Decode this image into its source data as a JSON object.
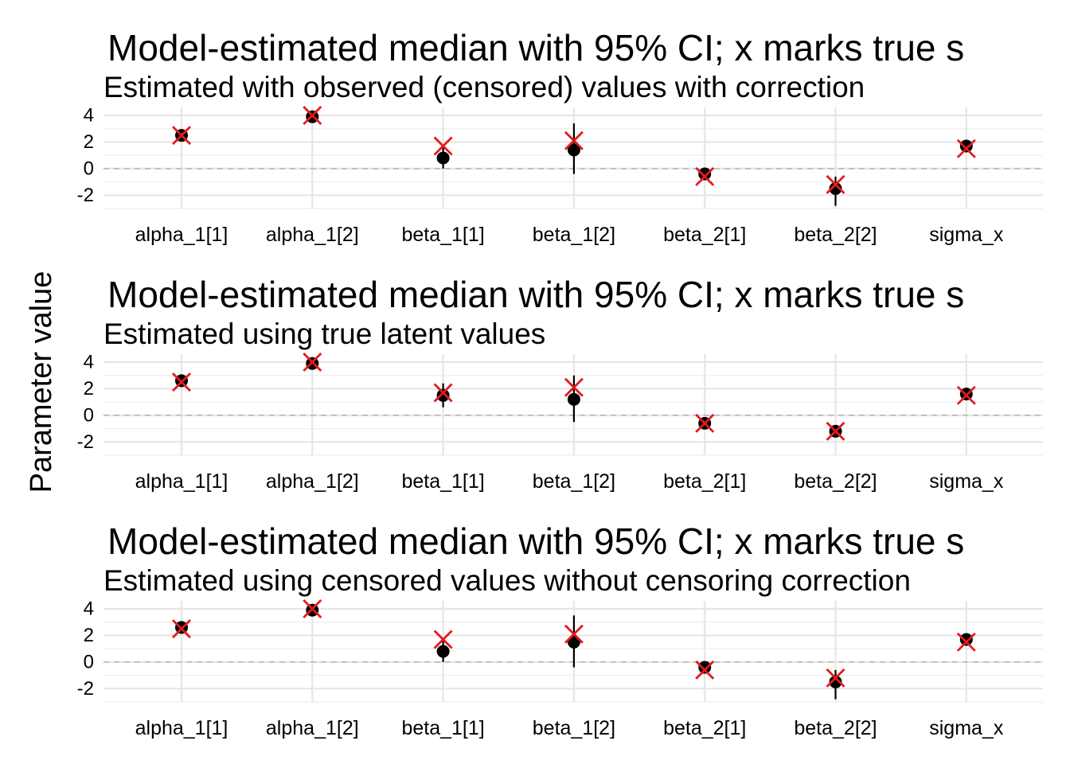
{
  "chart_data": [
    {
      "type": "scatter",
      "title": "Model-estimated median with 95% CI; x marks true s",
      "subtitle": "Estimated with observed (censored) values with correction",
      "ylabel": "Parameter value",
      "categories": [
        "alpha_1[1]",
        "alpha_1[2]",
        "beta_1[1]",
        "beta_1[2]",
        "beta_2[1]",
        "beta_2[2]",
        "sigma_x"
      ],
      "yticks": [
        4,
        2,
        0,
        -2
      ],
      "ylim": [
        -3.0,
        4.6
      ],
      "reference_line": 0,
      "grid": true,
      "series": [
        {
          "marker": "point",
          "color": "#000000",
          "median": [
            2.5,
            3.9,
            0.8,
            1.4,
            -0.4,
            -1.5,
            1.7
          ],
          "lower": [
            2.2,
            3.6,
            0.0,
            -0.4,
            -0.7,
            -2.8,
            1.5
          ],
          "upper": [
            2.8,
            4.2,
            1.7,
            3.4,
            -0.2,
            -0.6,
            1.9
          ]
        },
        {
          "marker": "x",
          "color": "#e41a1c",
          "values": [
            2.5,
            4.0,
            1.7,
            2.1,
            -0.6,
            -1.2,
            1.5
          ]
        }
      ]
    },
    {
      "type": "scatter",
      "title": "Model-estimated median with 95% CI; x marks true s",
      "subtitle": "Estimated using true latent values",
      "ylabel": "Parameter value",
      "categories": [
        "alpha_1[1]",
        "alpha_1[2]",
        "beta_1[1]",
        "beta_1[2]",
        "beta_2[1]",
        "beta_2[2]",
        "sigma_x"
      ],
      "yticks": [
        4,
        2,
        0,
        -2
      ],
      "ylim": [
        -3.0,
        4.6
      ],
      "reference_line": 0,
      "grid": true,
      "series": [
        {
          "marker": "point",
          "color": "#000000",
          "median": [
            2.6,
            3.9,
            1.5,
            1.2,
            -0.6,
            -1.2,
            1.6
          ],
          "lower": [
            2.3,
            3.6,
            0.6,
            -0.5,
            -0.9,
            -1.6,
            1.4
          ],
          "upper": [
            2.9,
            4.2,
            2.4,
            3.0,
            -0.3,
            -0.8,
            1.8
          ]
        },
        {
          "marker": "x",
          "color": "#e41a1c",
          "values": [
            2.5,
            4.0,
            1.7,
            2.1,
            -0.6,
            -1.2,
            1.5
          ]
        }
      ]
    },
    {
      "type": "scatter",
      "title": "Model-estimated median with 95% CI; x marks true s",
      "subtitle": "Estimated using censored values without censoring correction",
      "ylabel": "Parameter value",
      "categories": [
        "alpha_1[1]",
        "alpha_1[2]",
        "beta_1[1]",
        "beta_1[2]",
        "beta_2[1]",
        "beta_2[2]",
        "sigma_x"
      ],
      "yticks": [
        4,
        2,
        0,
        -2
      ],
      "ylim": [
        -3.0,
        4.6
      ],
      "reference_line": 0,
      "grid": true,
      "series": [
        {
          "marker": "point",
          "color": "#000000",
          "median": [
            2.6,
            3.9,
            0.8,
            1.5,
            -0.4,
            -1.5,
            1.7
          ],
          "lower": [
            2.3,
            3.6,
            0.0,
            -0.4,
            -0.7,
            -2.8,
            1.5
          ],
          "upper": [
            2.9,
            4.2,
            1.7,
            3.5,
            -0.2,
            -0.6,
            1.9
          ]
        },
        {
          "marker": "x",
          "color": "#e41a1c",
          "values": [
            2.5,
            4.0,
            1.7,
            2.1,
            -0.6,
            -1.2,
            1.5
          ]
        }
      ]
    }
  ]
}
